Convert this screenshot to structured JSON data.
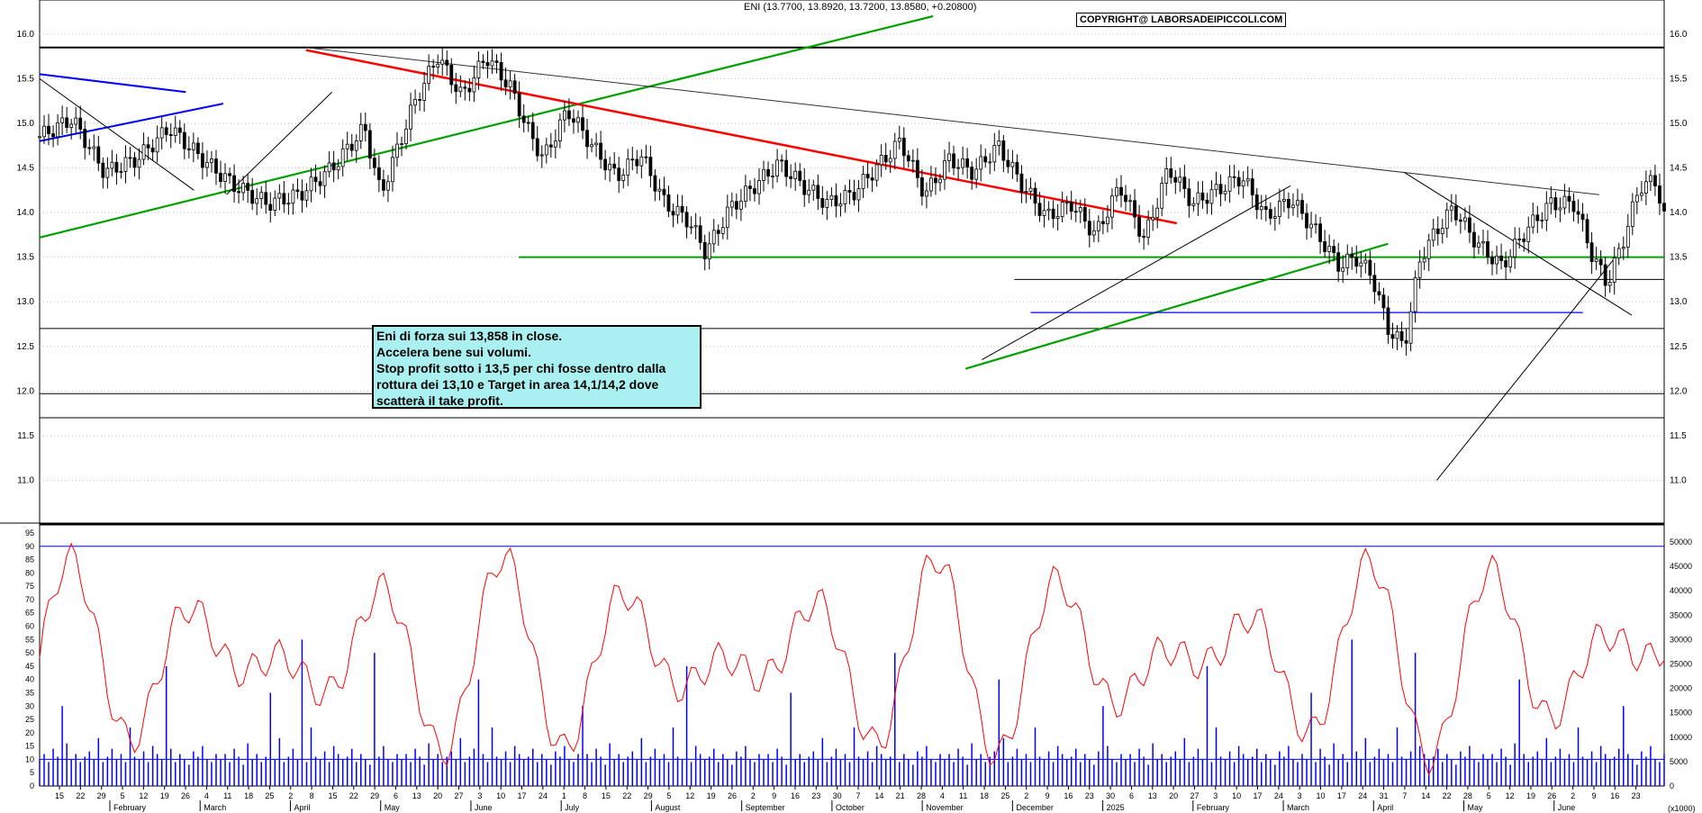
{
  "header": {
    "title": "ENI (13.7700, 13.8920, 13.7200, 13.8580, +0.20800)",
    "copyright": "COPYRIGHT@ LABORSADEIPICCOLI.COM"
  },
  "annotation": {
    "lines": [
      "Eni di forza sui 13,858 in close.",
      "Accelera bene sui volumi.",
      "Stop profit sotto i 13,5 per chi fosse dentro dalla",
      "rottura dei 13,10 e Target in area 14,1/14,2 dove",
      "scatterà il take profit."
    ]
  },
  "colors": {
    "candle": "#000000",
    "trend_green": "#00a000",
    "trend_red": "#ff0000",
    "trend_blue": "#0000ff",
    "volume": "#0000ff",
    "oscillator": "#ff0000"
  },
  "chart_data": [
    {
      "type": "candlestick",
      "title": "ENI (13.7700, 13.8920, 13.7200, 13.8580, +0.20800)",
      "ylim": [
        10.5,
        16.2
      ],
      "y_ticks": [
        "16.0",
        "15.5",
        "15.0",
        "14.5",
        "14.0",
        "13.5",
        "13.0",
        "12.5",
        "12.0",
        "11.5",
        "11.0"
      ],
      "y_tick_values": [
        16.0,
        15.5,
        15.0,
        14.5,
        14.0,
        13.5,
        13.0,
        12.5,
        12.0,
        11.5,
        11.0
      ],
      "horizontal_levels": [
        15.85,
        13.5,
        13.25,
        12.7,
        11.97,
        11.7
      ],
      "close_path": [
        [
          0,
          14.85
        ],
        [
          0.02,
          15.05
        ],
        [
          0.04,
          14.45
        ],
        [
          0.06,
          14.6
        ],
        [
          0.08,
          14.95
        ],
        [
          0.1,
          14.6
        ],
        [
          0.12,
          14.3
        ],
        [
          0.14,
          14.1
        ],
        [
          0.16,
          14.2
        ],
        [
          0.18,
          14.5
        ],
        [
          0.2,
          14.95
        ],
        [
          0.21,
          14.2
        ],
        [
          0.23,
          15.2
        ],
        [
          0.245,
          15.75
        ],
        [
          0.26,
          15.3
        ],
        [
          0.275,
          15.75
        ],
        [
          0.29,
          15.4
        ],
        [
          0.3,
          14.95
        ],
        [
          0.31,
          14.6
        ],
        [
          0.325,
          15.15
        ],
        [
          0.34,
          14.75
        ],
        [
          0.355,
          14.4
        ],
        [
          0.37,
          14.65
        ],
        [
          0.385,
          14.1
        ],
        [
          0.4,
          13.9
        ],
        [
          0.41,
          13.55
        ],
        [
          0.425,
          14.05
        ],
        [
          0.44,
          14.3
        ],
        [
          0.455,
          14.55
        ],
        [
          0.47,
          14.3
        ],
        [
          0.485,
          14.1
        ],
        [
          0.5,
          14.2
        ],
        [
          0.515,
          14.5
        ],
        [
          0.53,
          14.8
        ],
        [
          0.545,
          14.2
        ],
        [
          0.56,
          14.6
        ],
        [
          0.575,
          14.45
        ],
        [
          0.59,
          14.75
        ],
        [
          0.605,
          14.3
        ],
        [
          0.62,
          13.95
        ],
        [
          0.635,
          14.1
        ],
        [
          0.65,
          13.75
        ],
        [
          0.665,
          14.3
        ],
        [
          0.68,
          13.7
        ],
        [
          0.695,
          14.5
        ],
        [
          0.71,
          14.1
        ],
        [
          0.725,
          14.25
        ],
        [
          0.74,
          14.4
        ],
        [
          0.755,
          13.95
        ],
        [
          0.77,
          14.15
        ],
        [
          0.785,
          13.8
        ],
        [
          0.8,
          13.4
        ],
        [
          0.81,
          13.5
        ],
        [
          0.82,
          13.3
        ],
        [
          0.83,
          12.7
        ],
        [
          0.84,
          12.5
        ],
        [
          0.85,
          13.5
        ],
        [
          0.86,
          13.8
        ],
        [
          0.87,
          14.05
        ],
        [
          0.885,
          13.65
        ],
        [
          0.9,
          13.4
        ],
        [
          0.915,
          13.8
        ],
        [
          0.93,
          14.1
        ],
        [
          0.945,
          14.1
        ],
        [
          0.955,
          13.55
        ],
        [
          0.965,
          13.2
        ],
        [
          0.975,
          13.7
        ],
        [
          0.985,
          14.3
        ],
        [
          0.995,
          14.35
        ],
        [
          1.0,
          13.95
        ]
      ]
    },
    {
      "type": "bar",
      "title": "",
      "ylim": [
        0,
        95
      ],
      "left_ticks": [
        "95",
        "90",
        "85",
        "80",
        "75",
        "70",
        "65",
        "60",
        "55",
        "50",
        "45",
        "40",
        "35",
        "30",
        "25",
        "20",
        "15",
        "10",
        "5",
        "0"
      ],
      "right_ticks": [
        "50000",
        "45000",
        "40000",
        "35000",
        "30000",
        "25000",
        "20000",
        "15000",
        "10000",
        "5000",
        "0"
      ],
      "right_unit": "(x1000)",
      "horizontal_levels": [
        90,
        10
      ],
      "volume_pattern": [
        10,
        12,
        9,
        14,
        11,
        8,
        16,
        10,
        12,
        9,
        11,
        13,
        10,
        18,
        9,
        11,
        14,
        10,
        12,
        9,
        22,
        11,
        10,
        13,
        9,
        15,
        12,
        10,
        11,
        14,
        9,
        12,
        10,
        8,
        13,
        11,
        15,
        10,
        9,
        12
      ]
    }
  ],
  "x_axis": {
    "day_ticks": [
      "15",
      "22",
      "29",
      "5",
      "12",
      "19",
      "26",
      "4",
      "11",
      "18",
      "25",
      "2",
      "8",
      "15",
      "22",
      "29",
      "6",
      "13",
      "20",
      "27",
      "3",
      "10",
      "17",
      "24",
      "1",
      "8",
      "15",
      "22",
      "29",
      "5",
      "12",
      "19",
      "26",
      "2",
      "9",
      "16",
      "23",
      "30",
      "7",
      "14",
      "21",
      "28",
      "4",
      "11",
      "18",
      "25",
      "2",
      "9",
      "16",
      "23",
      "30",
      "6",
      "13",
      "20",
      "27",
      "3",
      "10",
      "17",
      "24",
      "3",
      "10",
      "17",
      "24",
      "31",
      "7",
      "14",
      "22",
      "28",
      "5",
      "12",
      "19",
      "26",
      "2",
      "9",
      "16",
      "23"
    ],
    "month_ticks": [
      "February",
      "March",
      "April",
      "May",
      "June",
      "July",
      "August",
      "September",
      "October",
      "November",
      "December",
      "2025",
      "February",
      "March",
      "April",
      "May",
      "June"
    ]
  }
}
